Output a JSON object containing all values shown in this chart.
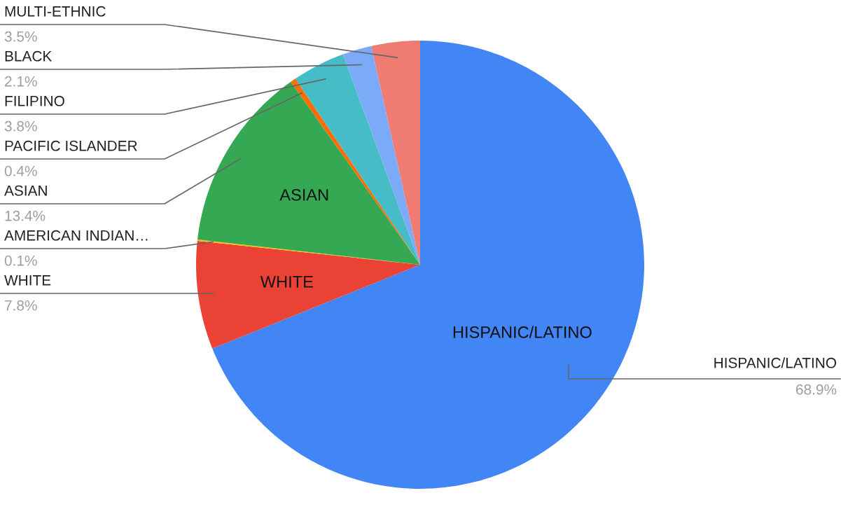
{
  "chart_data": {
    "type": "pie",
    "categories": [
      "HISPANIC/LATINO",
      "WHITE",
      "AMERICAN INDIAN…",
      "ASIAN",
      "PACIFIC ISLANDER",
      "FILIPINO",
      "BLACK",
      "MULTI-ETHNIC"
    ],
    "values": [
      68.9,
      7.8,
      0.1,
      13.4,
      0.4,
      3.8,
      2.1,
      3.5
    ],
    "colors": [
      "#4285f4",
      "#ea4335",
      "#fbbc04",
      "#34a853",
      "#ff6d01",
      "#46bdc6",
      "#7baaf7",
      "#f07b72"
    ],
    "value_labels": [
      "68.9%",
      "7.8%",
      "0.1%",
      "13.4%",
      "0.4%",
      "3.8%",
      "2.1%",
      "3.5%"
    ],
    "annotations": [
      {
        "text": "HISPANIC/LATINO",
        "x": "HISPANIC/LATINO"
      },
      {
        "text": "WHITE",
        "x": "WHITE"
      },
      {
        "text": "ASIAN",
        "x": "ASIAN"
      }
    ]
  }
}
